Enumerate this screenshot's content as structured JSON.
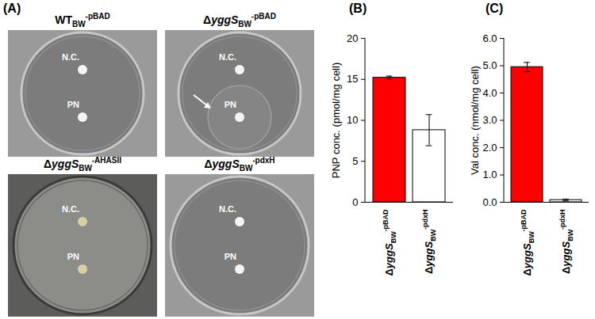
{
  "panel_a": {
    "label": "(A)",
    "plates": [
      {
        "title": {
          "pre": "WT",
          "sub": "BW",
          "sup": "-pBAD"
        },
        "spots": [
          "N.C.",
          "PN"
        ]
      },
      {
        "title": {
          "pre": "Δ",
          "italic": "yggS",
          "sub": "BW",
          "sup": "-pBAD"
        },
        "spots": [
          "N.C.",
          "PN"
        ]
      },
      {
        "title": {
          "pre": "Δ",
          "italic": "yggS",
          "sub": "BW",
          "sup": "-AHASII"
        },
        "spots": [
          "N.C.",
          "PN"
        ]
      },
      {
        "title": {
          "pre": "Δ",
          "italic": "yggS",
          "sub": "BW",
          "sup": "-pdxH"
        },
        "spots": [
          "N.C.",
          "PN"
        ]
      }
    ]
  },
  "chart_data": [
    {
      "type": "bar",
      "title": "(B)",
      "categories": [
        {
          "pre": "Δ",
          "italic": "yggS",
          "sub": "BW",
          "sup": "-pBAD"
        },
        {
          "pre": "Δ",
          "italic": "yggS",
          "sub": "BW",
          "sup": "-pdxH"
        }
      ],
      "values": [
        15.2,
        8.8
      ],
      "errors": [
        0.2,
        1.9
      ],
      "colors": [
        "#ff0000",
        "#ffffff"
      ],
      "ylabel": "PNP conc. (pmol/mg cell)",
      "ylim": [
        0,
        20
      ],
      "yticks": [
        0,
        5,
        10,
        15,
        20
      ]
    },
    {
      "type": "bar",
      "title": "(C)",
      "categories": [
        {
          "pre": "Δ",
          "italic": "yggS",
          "sub": "BW",
          "sup": "-pBAD"
        },
        {
          "pre": "Δ",
          "italic": "yggS",
          "sub": "BW",
          "sup": "-pdxH"
        }
      ],
      "values": [
        4.95,
        0.08
      ],
      "errors": [
        0.17,
        0.03
      ],
      "colors": [
        "#ff0000",
        "#ffffff"
      ],
      "ylabel": "Val conc. (nmol/mg cell)",
      "ylim": [
        0,
        6
      ],
      "yticks": [
        0,
        1,
        2,
        3,
        4,
        5,
        6
      ]
    }
  ]
}
